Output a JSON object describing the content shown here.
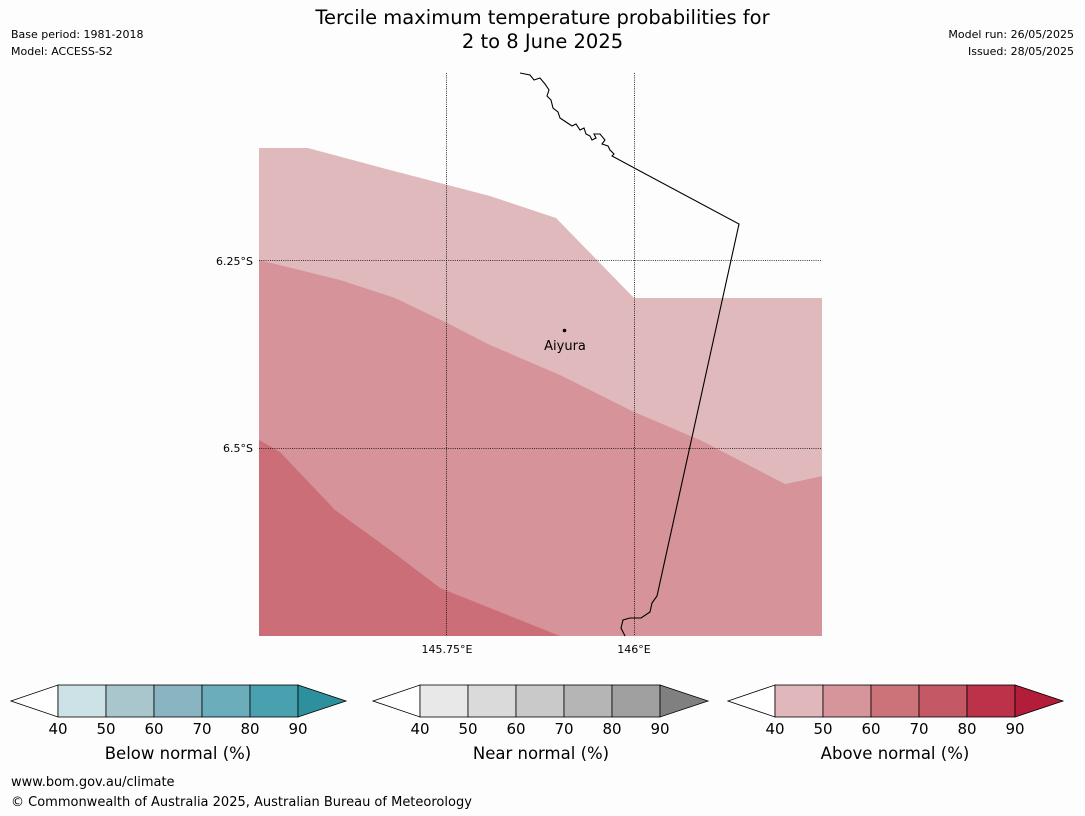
{
  "header": {
    "title_line1": "Tercile maximum temperature probabilities for",
    "title_line2": "2 to 8 June 2025",
    "base_period": "Base period: 1981-2018",
    "model": "Model: ACCESS-S2",
    "model_run": "Model run: 26/05/2025",
    "issued": "Issued: 28/05/2025"
  },
  "map": {
    "lon_ticks": [
      "145.75°E",
      "146°E"
    ],
    "lat_ticks": [
      "6.25°S",
      "6.5°S"
    ],
    "place_name": "Aiyura",
    "category_colors": {
      "above_40_50": "#e0b9bd",
      "above_50_60": "#d69399",
      "above_60_70": "#cb6e77"
    }
  },
  "legends": [
    {
      "label": "Below normal (%)",
      "ticks": [
        "40",
        "50",
        "60",
        "70",
        "80",
        "90"
      ],
      "colors": [
        "#cce2e6",
        "#a8c6cb",
        "#89b4c1",
        "#6badba",
        "#49a1b0",
        "#2d919d"
      ]
    },
    {
      "label": "Near normal (%)",
      "ticks": [
        "40",
        "50",
        "60",
        "70",
        "80",
        "90"
      ],
      "colors": [
        "#e8e8e8",
        "#dadada",
        "#c9c9c9",
        "#b5b5b5",
        "#a0a0a0",
        "#808080"
      ]
    },
    {
      "label": "Above normal (%)",
      "ticks": [
        "40",
        "50",
        "60",
        "70",
        "80",
        "90"
      ],
      "colors": [
        "#e0b7bb",
        "#d6959b",
        "#cc7379",
        "#c45864",
        "#bc3249",
        "#b31d3a"
      ]
    }
  ],
  "footer": {
    "url": "www.bom.gov.au/climate",
    "copyright": "© Commonwealth of Australia 2025, Australian Bureau of Meteorology"
  }
}
